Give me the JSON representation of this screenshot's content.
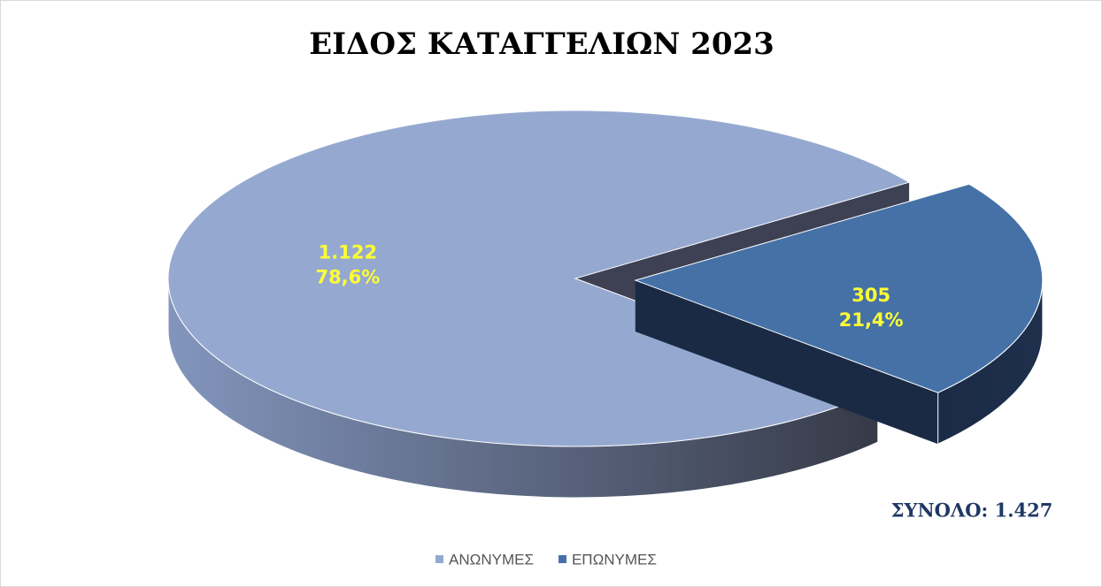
{
  "chart_data": {
    "type": "pie",
    "title": "ΕΙΔΟΣ ΚΑΤΑΓΓΕΛΙΩΝ 2023",
    "categories": [
      "ΑΝΩΝΥΜΕΣ",
      "ΕΠΩΝΥΜΕΣ"
    ],
    "values": [
      1122,
      305
    ],
    "value_labels": [
      "1.122",
      "305"
    ],
    "percentages": [
      78.6,
      21.4
    ],
    "percentage_labels": [
      "78,6%",
      "21,4%"
    ],
    "colors": [
      "#95a9d0",
      "#4571a7"
    ],
    "annotation": "ΣΥΝΟΛΟ: 1.427",
    "legend": "bottom"
  }
}
